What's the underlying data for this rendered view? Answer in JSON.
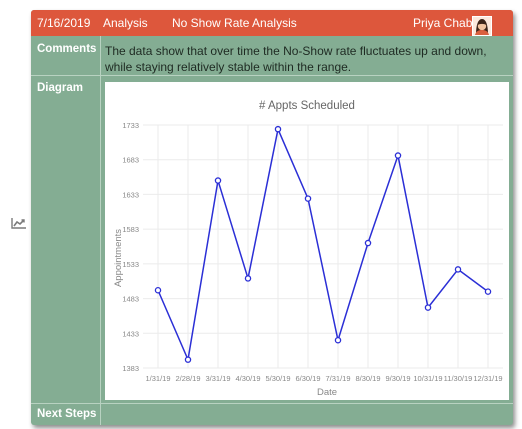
{
  "header": {
    "date": "7/16/2019",
    "type": "Analysis",
    "title": "No Show Rate Analysis",
    "user": "Priya Chabra"
  },
  "sections": {
    "comments_label": "Comments",
    "comments_text": "The data show that over time the No-Show rate fluctuates up and down, while staying relatively stable within the range.",
    "diagram_label": "Diagram",
    "next_steps_label": "Next Steps"
  },
  "icons": {
    "side": "trending-up-icon",
    "avatar": "user-avatar-icon"
  },
  "colors": {
    "header": "#dd573c",
    "panel": "#84ad93",
    "series": "#2b2fd6"
  },
  "chart_data": {
    "type": "line",
    "title": "# Appts Scheduled",
    "xlabel": "Date",
    "ylabel": "Appointments",
    "categories": [
      "1/31/19",
      "2/28/19",
      "3/31/19",
      "4/30/19",
      "5/30/19",
      "6/30/19",
      "7/31/19",
      "8/30/19",
      "9/30/19",
      "10/31/19",
      "11/30/19",
      "12/31/19"
    ],
    "series": [
      {
        "values": [
          1495,
          1395,
          1653,
          1512,
          1727,
          1627,
          1423,
          1563,
          1689,
          1470,
          1525,
          1493
        ]
      }
    ],
    "yticks": [
      1733,
      1683,
      1633,
      1583,
      1533,
      1483,
      1433,
      1383
    ],
    "ylim": [
      1383,
      1733
    ],
    "grid": true
  }
}
